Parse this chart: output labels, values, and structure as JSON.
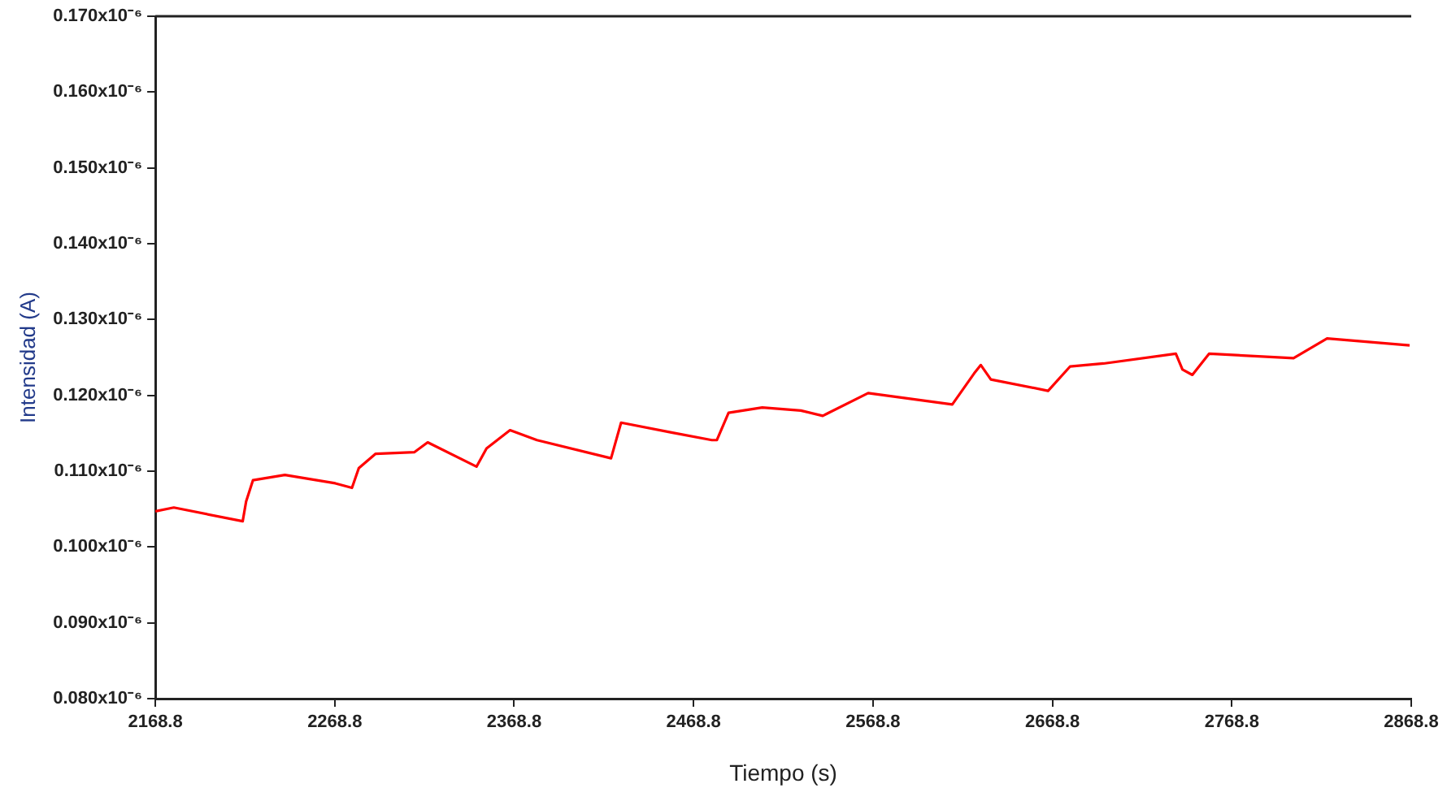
{
  "chart_data": {
    "type": "line",
    "xlabel": "Tiempo (s)",
    "ylabel": "Intensidad (A)",
    "xlim": [
      2168.8,
      2868.8
    ],
    "xticks": [
      2168.8,
      2268.8,
      2368.8,
      2468.8,
      2568.8,
      2668.8,
      2768.8,
      2868.8
    ],
    "ylim": [
      8e-08,
      1.7e-07
    ],
    "yticks": [
      {
        "value": 8e-08,
        "label": "0.080x10⁻⁶"
      },
      {
        "value": 9e-08,
        "label": "0.090x10⁻⁶"
      },
      {
        "value": 1e-07,
        "label": "0.100x10⁻⁶"
      },
      {
        "value": 1.1e-07,
        "label": "0.110x10⁻⁶"
      },
      {
        "value": 1.2e-07,
        "label": "0.120x10⁻⁶"
      },
      {
        "value": 1.3e-07,
        "label": "0.130x10⁻⁶"
      },
      {
        "value": 1.4e-07,
        "label": "0.140x10⁻⁶"
      },
      {
        "value": 1.5e-07,
        "label": "0.150x10⁻⁶"
      },
      {
        "value": 1.6e-07,
        "label": "0.160x10⁻⁶"
      },
      {
        "value": 1.7e-07,
        "label": "0.170x10⁻⁶"
      }
    ],
    "grid": false,
    "marker": "none",
    "line_style": "solid",
    "series": [
      {
        "color": "#ff0000",
        "x": [
          2168.8,
          2179.1,
          2217.5,
          2219.4,
          2223.2,
          2241.0,
          2269.1,
          2278.4,
          2282.2,
          2291.6,
          2313.1,
          2320.6,
          2347.8,
          2353.4,
          2366.5,
          2381.5,
          2422.8,
          2428.4,
          2456.5,
          2479.0,
          2481.8,
          2488.3,
          2507.1,
          2528.6,
          2540.8,
          2566.1,
          2613.0,
          2625.2,
          2628.9,
          2634.5,
          2666.4,
          2678.6,
          2697.3,
          2737.6,
          2741.3,
          2746.8,
          2756.2,
          2803.2,
          2821.9,
          2867.9
        ],
        "values": [
          1.047e-07,
          1.052e-07,
          1.034e-07,
          1.06e-07,
          1.088e-07,
          1.095e-07,
          1.084e-07,
          1.078e-07,
          1.104e-07,
          1.123e-07,
          1.125e-07,
          1.138e-07,
          1.106e-07,
          1.13e-07,
          1.154e-07,
          1.141e-07,
          1.117e-07,
          1.164e-07,
          1.151e-07,
          1.141e-07,
          1.141e-07,
          1.177e-07,
          1.184e-07,
          1.18e-07,
          1.173e-07,
          1.203e-07,
          1.188e-07,
          1.229e-07,
          1.24e-07,
          1.221e-07,
          1.206e-07,
          1.238e-07,
          1.242e-07,
          1.255e-07,
          1.234e-07,
          1.227e-07,
          1.255e-07,
          1.249e-07,
          1.275e-07,
          1.266e-07
        ]
      }
    ]
  }
}
